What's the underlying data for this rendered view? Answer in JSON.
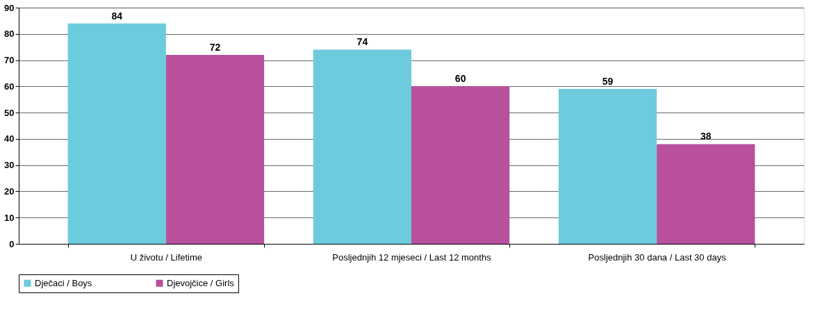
{
  "chart_data": {
    "type": "bar",
    "categories": [
      "U životu / Lifetime",
      "Posljednjih 12 mjeseci / Last 12 months",
      "Posljednjih 30 dana / Last 30 days"
    ],
    "series": [
      {
        "name": "Dječaci / Boys",
        "color": "#6ccbdc",
        "values": [
          84,
          74,
          59
        ]
      },
      {
        "name": "Djevojčice / Girls",
        "color": "#b8509e",
        "values": [
          72,
          60,
          38
        ]
      }
    ],
    "ylim": [
      0,
      90
    ],
    "yticks": [
      0,
      10,
      20,
      30,
      40,
      50,
      60,
      70,
      80,
      90
    ],
    "grid": "y",
    "legend": "bottom",
    "data_labels": true
  }
}
